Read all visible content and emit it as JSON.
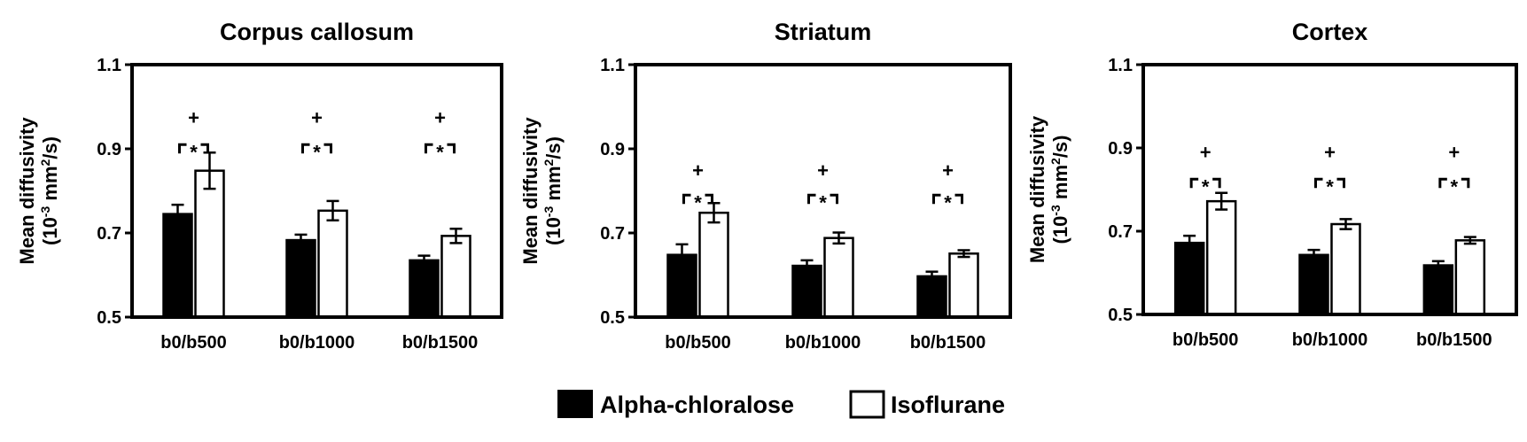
{
  "legend": {
    "entries": [
      {
        "label": "Alpha-chloralose",
        "color": "#000000"
      },
      {
        "label": "Isoflurane",
        "color": "#ffffff"
      }
    ]
  },
  "y_axis_label": {
    "line1": "Mean diffusivity",
    "line2_prefix": "(10",
    "line2_exp": "-3",
    "line2_mid": " mm",
    "line2_exp2": "2",
    "line2_suffix": "/s)"
  },
  "significance": {
    "plus": "+",
    "star": "*"
  },
  "chart_data": [
    {
      "type": "bar",
      "title": "Corpus callosum",
      "categories": [
        "b0/b500",
        "b0/b1000",
        "b0/b1500"
      ],
      "ylim": [
        0.5,
        1.1
      ],
      "yticks": [
        0.5,
        0.7,
        0.9,
        1.1
      ],
      "ytick_labels": [
        "0.5",
        "0.7",
        "0.9",
        "1.1"
      ],
      "series": [
        {
          "name": "Alpha-chloralose",
          "values": [
            0.745,
            0.683,
            0.635
          ],
          "errors": [
            0.022,
            0.013,
            0.011
          ]
        },
        {
          "name": "Isoflurane",
          "values": [
            0.848,
            0.753,
            0.693
          ],
          "errors": [
            0.043,
            0.023,
            0.017
          ]
        }
      ],
      "annotations": {
        "plus_y": 0.975,
        "bracket_y": 0.91
      }
    },
    {
      "type": "bar",
      "title": "Striatum",
      "categories": [
        "b0/b500",
        "b0/b1000",
        "b0/b1500"
      ],
      "ylim": [
        0.5,
        1.1
      ],
      "yticks": [
        0.5,
        0.7,
        0.9,
        1.1
      ],
      "ytick_labels": [
        "0.5",
        "0.7",
        "0.9",
        "1.1"
      ],
      "series": [
        {
          "name": "Alpha-chloralose",
          "values": [
            0.648,
            0.622,
            0.597
          ],
          "errors": [
            0.025,
            0.013,
            0.011
          ]
        },
        {
          "name": "Isoflurane",
          "values": [
            0.748,
            0.688,
            0.651
          ],
          "errors": [
            0.023,
            0.013,
            0.008
          ]
        }
      ],
      "annotations": {
        "plus_y": 0.85,
        "bracket_y": 0.79
      }
    },
    {
      "type": "bar",
      "title": "Cortex",
      "categories": [
        "b0/b500",
        "b0/b1000",
        "b0/b1500"
      ],
      "ylim": [
        0.5,
        1.1
      ],
      "yticks": [
        0.5,
        0.7,
        0.9,
        1.1
      ],
      "ytick_labels": [
        "0.5",
        "0.7",
        "0.9",
        "1.1"
      ],
      "series": [
        {
          "name": "Alpha-chloralose",
          "values": [
            0.672,
            0.643,
            0.618
          ],
          "errors": [
            0.017,
            0.012,
            0.01
          ]
        },
        {
          "name": "Isoflurane",
          "values": [
            0.772,
            0.717,
            0.678
          ],
          "errors": [
            0.02,
            0.012,
            0.008
          ]
        }
      ],
      "annotations": {
        "plus_y": 0.89,
        "bracket_y": 0.825
      }
    }
  ]
}
